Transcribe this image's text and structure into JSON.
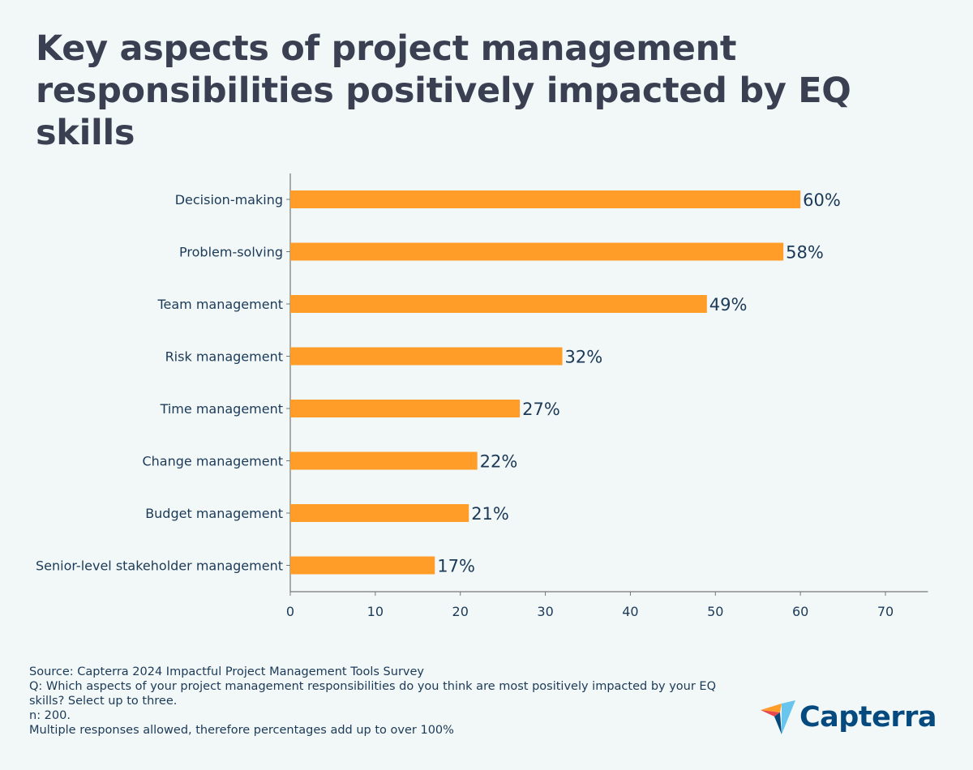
{
  "title": "Key aspects of project management responsibilities positively impacted by EQ skills",
  "chart_data": {
    "type": "bar",
    "orientation": "horizontal",
    "categories": [
      "Decision-making",
      "Problem-solving",
      "Team management",
      "Risk management",
      "Time management",
      "Change management",
      "Budget management",
      "Senior-level stakeholder management"
    ],
    "values": [
      60,
      58,
      49,
      32,
      27,
      22,
      21,
      17
    ],
    "data_labels": [
      "60%",
      "58%",
      "49%",
      "32%",
      "27%",
      "22%",
      "21%",
      "17%"
    ],
    "xticks": [
      0,
      10,
      20,
      30,
      40,
      50,
      60,
      70
    ],
    "xlim": [
      0,
      75
    ],
    "xlabel": "",
    "ylabel": "",
    "grid": false,
    "bar_color": "#ff9d28"
  },
  "footer": {
    "source": "Source: Capterra 2024 Impactful Project Management Tools Survey",
    "question": "Q: Which aspects of your project management responsibilities do you think are most positively impacted by your EQ skills? Select up to three.",
    "n": "n: 200.",
    "note": "Multiple responses allowed, therefore percentages add up to over 100%"
  },
  "logo": {
    "text": "Capterra",
    "icon": "capterra-arrow-icon"
  }
}
